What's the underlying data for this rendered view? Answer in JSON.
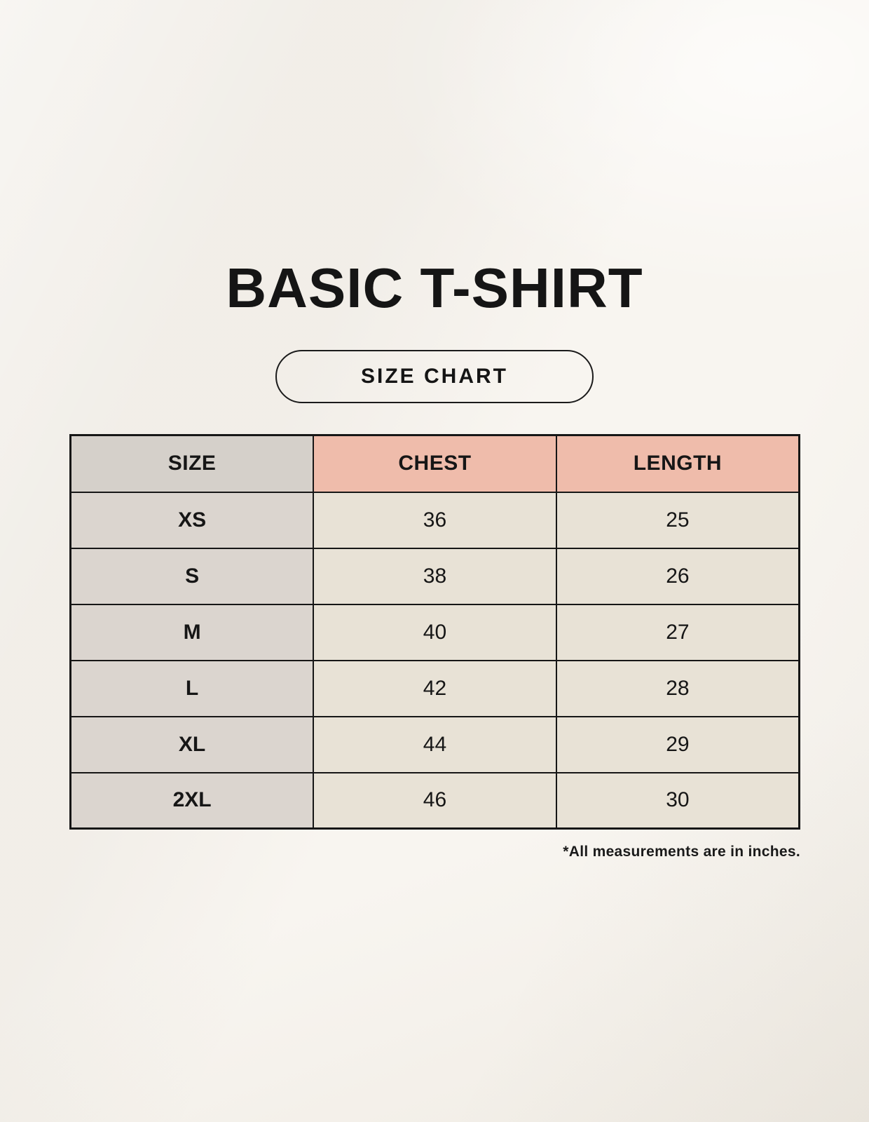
{
  "page": {
    "title": "BASIC T-SHIRT",
    "badge_label": "SIZE CHART",
    "footnote": "*All measurements are in inches."
  },
  "colors": {
    "background": "#f5f1ea",
    "header_accent_pink": "#efbcab",
    "size_column_gray_header": "#d5d0ca",
    "size_column_gray_body": "#dbd5cf",
    "data_cell_cream": "#e8e2d6",
    "border_black": "#161616"
  },
  "chart_data": {
    "type": "table",
    "title": "BASIC T-SHIRT",
    "columns": [
      "SIZE",
      "CHEST",
      "LENGTH"
    ],
    "rows": [
      [
        "XS",
        "36",
        "25"
      ],
      [
        "S",
        "38",
        "26"
      ],
      [
        "M",
        "40",
        "27"
      ],
      [
        "L",
        "42",
        "28"
      ],
      [
        "XL",
        "44",
        "29"
      ],
      [
        "2XL",
        "46",
        "30"
      ]
    ],
    "unit_note": "*All measurements are in inches."
  }
}
